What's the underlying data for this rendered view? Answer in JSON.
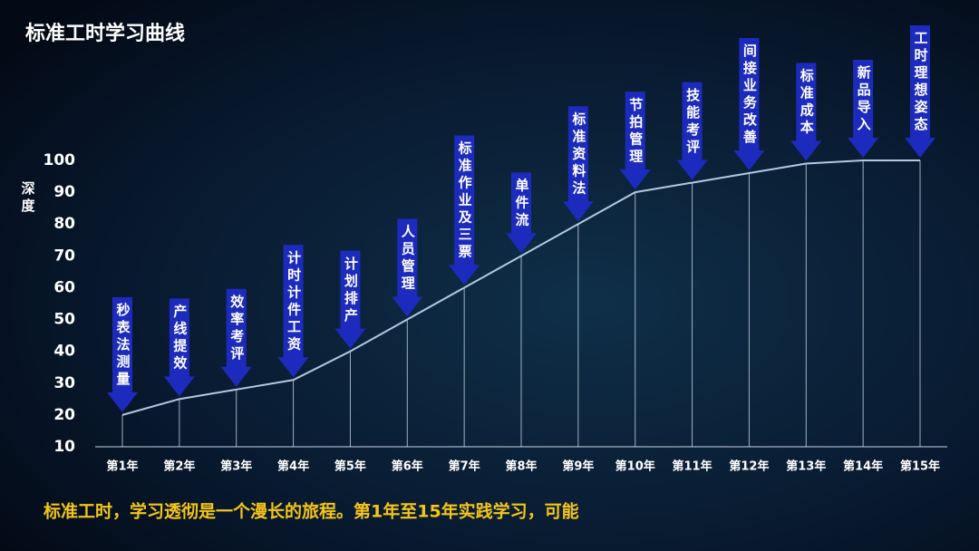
{
  "chart_data": {
    "type": "line",
    "title": "标准工时学习曲线",
    "y_label": "深度",
    "categories": [
      "第1年",
      "第2年",
      "第3年",
      "第4年",
      "第5年",
      "第6年",
      "第7年",
      "第8年",
      "第9年",
      "第10年",
      "第11年",
      "第12年",
      "第13年",
      "第14年",
      "第15年"
    ],
    "values": [
      20,
      25,
      28,
      31,
      40,
      50,
      60,
      70,
      80,
      90,
      93,
      96,
      99,
      100,
      100
    ],
    "annotations": [
      "秒表法测量",
      "产线提效",
      "效率考评",
      "计时计件工资",
      "计划排产",
      "人员管理",
      "标准作业及三票",
      "单件流",
      "标准资料法",
      "节拍管理",
      "技能考评",
      "间接业务改善",
      "标准成本",
      "新品导入",
      "工时理想姿态"
    ],
    "color": "#b4c8e4",
    "arrow_color": "#1c2bbd",
    "ylim": [
      10,
      100
    ],
    "yticks": [
      10,
      20,
      30,
      40,
      50,
      60,
      70,
      80,
      90,
      100
    ],
    "caption": "标准工时，学习透彻是一个漫长的旅程。第1年至15年实践学习，可能"
  }
}
